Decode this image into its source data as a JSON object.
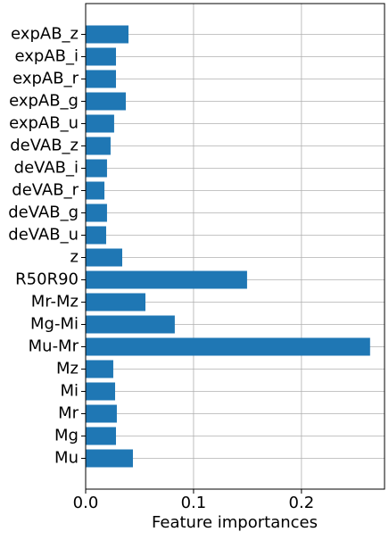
{
  "chart_data": {
    "type": "barh",
    "xlabel": "Feature importances",
    "categories": [
      "Mu",
      "Mg",
      "Mr",
      "Mi",
      "Mz",
      "Mu-Mr",
      "Mg-Mi",
      "Mr-Mz",
      "R50R90",
      "z",
      "deVAB_u",
      "deVAB_g",
      "deVAB_r",
      "deVAB_i",
      "deVAB_z",
      "expAB_u",
      "expAB_g",
      "expAB_r",
      "expAB_i",
      "expAB_z"
    ],
    "values": [
      0.0438,
      0.0281,
      0.0289,
      0.0273,
      0.0256,
      0.2636,
      0.0826,
      0.0554,
      0.1496,
      0.0339,
      0.019,
      0.0198,
      0.0174,
      0.0198,
      0.0231,
      0.0264,
      0.0372,
      0.0281,
      0.0281,
      0.0397
    ],
    "color": "#1f77b4",
    "xlim": [
      0,
      0.277
    ],
    "xticks": [
      {
        "value": 0,
        "label": "0.0"
      },
      0.1,
      0.2
    ],
    "grid": true
  }
}
